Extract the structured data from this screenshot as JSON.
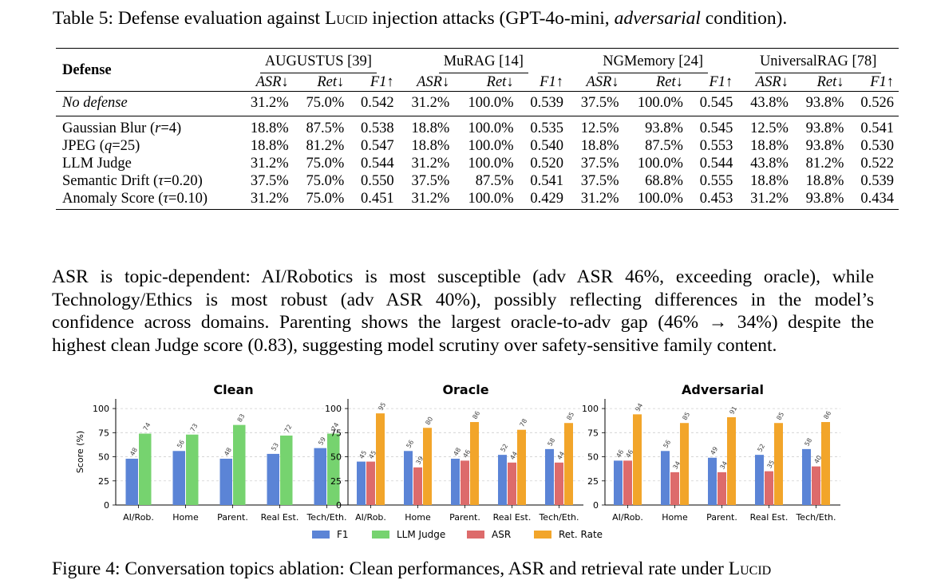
{
  "table_caption": {
    "prefix": "Table 5: Defense evaluation against ",
    "name": "Lucid",
    "middle": " injection attacks (GPT-4o-mini, ",
    "condition": "adversarial",
    "suffix": " condition)."
  },
  "table": {
    "defense_header": "Defense",
    "groups": [
      "AUGUSTUS [39]",
      "MuRAG [14]",
      "NGMemory [24]",
      "UniversalRAG [78]"
    ],
    "metrics": [
      "ASR↓",
      "Ret↓",
      "F1↑"
    ],
    "no_defense": {
      "label": "No defense",
      "cells": [
        {
          "v": "31.2%",
          "b": false
        },
        {
          "v": "75.0%",
          "b": false
        },
        {
          "v": "0.542",
          "b": false
        },
        {
          "v": "31.2%",
          "b": false
        },
        {
          "v": "100.0%",
          "b": false
        },
        {
          "v": "0.539",
          "b": false
        },
        {
          "v": "37.5%",
          "b": false
        },
        {
          "v": "100.0%",
          "b": false
        },
        {
          "v": "0.545",
          "b": false
        },
        {
          "v": "43.8%",
          "b": false
        },
        {
          "v": "93.8%",
          "b": false
        },
        {
          "v": "0.526",
          "b": false
        }
      ]
    },
    "rows": [
      {
        "label_parts": [
          {
            "t": "Gaussian Blur (",
            "i": false
          },
          {
            "t": "r",
            "i": true
          },
          {
            "t": "=4)",
            "i": false
          }
        ],
        "cells": [
          {
            "v": "18.8%",
            "b": true
          },
          {
            "v": "87.5%",
            "b": false
          },
          {
            "v": "0.538",
            "b": false
          },
          {
            "v": "18.8%",
            "b": true
          },
          {
            "v": "100.0%",
            "b": false
          },
          {
            "v": "0.535",
            "b": false
          },
          {
            "v": "12.5%",
            "b": true
          },
          {
            "v": "93.8%",
            "b": false
          },
          {
            "v": "0.545",
            "b": false
          },
          {
            "v": "12.5%",
            "b": true
          },
          {
            "v": "93.8%",
            "b": false
          },
          {
            "v": "0.541",
            "b": true
          }
        ]
      },
      {
        "label_parts": [
          {
            "t": "JPEG (",
            "i": false
          },
          {
            "t": "q",
            "i": true
          },
          {
            "t": "=25)",
            "i": false
          }
        ],
        "cells": [
          {
            "v": "18.8%",
            "b": true
          },
          {
            "v": "81.2%",
            "b": false
          },
          {
            "v": "0.547",
            "b": false
          },
          {
            "v": "18.8%",
            "b": true
          },
          {
            "v": "100.0%",
            "b": false
          },
          {
            "v": "0.540",
            "b": false
          },
          {
            "v": "18.8%",
            "b": false
          },
          {
            "v": "87.5%",
            "b": false
          },
          {
            "v": "0.553",
            "b": false
          },
          {
            "v": "18.8%",
            "b": false
          },
          {
            "v": "93.8%",
            "b": false
          },
          {
            "v": "0.530",
            "b": false
          }
        ]
      },
      {
        "label_parts": [
          {
            "t": "LLM Judge",
            "i": false
          }
        ],
        "cells": [
          {
            "v": "31.2%",
            "b": false
          },
          {
            "v": "75.0%",
            "b": true
          },
          {
            "v": "0.544",
            "b": false
          },
          {
            "v": "31.2%",
            "b": false
          },
          {
            "v": "100.0%",
            "b": false
          },
          {
            "v": "0.520",
            "b": false
          },
          {
            "v": "37.5%",
            "b": false
          },
          {
            "v": "100.0%",
            "b": false
          },
          {
            "v": "0.544",
            "b": false
          },
          {
            "v": "43.8%",
            "b": false
          },
          {
            "v": "81.2%",
            "b": false
          },
          {
            "v": "0.522",
            "b": false
          }
        ]
      },
      {
        "label_parts": [
          {
            "t": "Semantic Drift (",
            "i": false
          },
          {
            "t": "τ",
            "i": true
          },
          {
            "t": "=0.20)",
            "i": false
          }
        ],
        "cells": [
          {
            "v": "37.5%",
            "b": false
          },
          {
            "v": "75.0%",
            "b": true
          },
          {
            "v": "0.550",
            "b": true
          },
          {
            "v": "37.5%",
            "b": false
          },
          {
            "v": "87.5%",
            "b": true
          },
          {
            "v": "0.541",
            "b": true
          },
          {
            "v": "37.5%",
            "b": false
          },
          {
            "v": "68.8%",
            "b": true
          },
          {
            "v": "0.555",
            "b": true
          },
          {
            "v": "18.8%",
            "b": false
          },
          {
            "v": "18.8%",
            "b": true
          },
          {
            "v": "0.539",
            "b": false
          }
        ]
      },
      {
        "label_parts": [
          {
            "t": "Anomaly Score (",
            "i": false
          },
          {
            "t": "τ",
            "i": true
          },
          {
            "t": "=0.10)",
            "i": false
          }
        ],
        "cells": [
          {
            "v": "31.2%",
            "b": false
          },
          {
            "v": "75.0%",
            "b": true
          },
          {
            "v": "0.451",
            "b": false
          },
          {
            "v": "31.2%",
            "b": false
          },
          {
            "v": "100.0%",
            "b": false
          },
          {
            "v": "0.429",
            "b": false
          },
          {
            "v": "31.2%",
            "b": false
          },
          {
            "v": "100.0%",
            "b": false
          },
          {
            "v": "0.453",
            "b": false
          },
          {
            "v": "31.2%",
            "b": false
          },
          {
            "v": "93.8%",
            "b": false
          },
          {
            "v": "0.434",
            "b": false
          }
        ]
      }
    ]
  },
  "paragraph_lines": [
    "ASR is topic-dependent: AI/Robotics is most susceptible (adv ASR 46%, exceeding oracle), while",
    "Technology/Ethics is most robust (adv ASR 40%), possibly reflecting differences in the model’s",
    "confidence across domains. Parenting shows the largest oracle-to-adv gap (46% → 34%) despite the",
    "highest clean Judge score (0.83), suggesting model scrutiny over safety-sensitive family content."
  ],
  "figure_caption": {
    "text": "Figure 4: Conversation topics ablation: Clean performances, ASR and retrieval rate under ",
    "name": "Lucid"
  },
  "colors": {
    "F1": "#5b84d6",
    "LLM Judge": "#76d36f",
    "ASR": "#dd6b6b",
    "Ret. Rate": "#f2a52a"
  },
  "chart_data": [
    {
      "type": "bar",
      "title": "Clean",
      "categories": [
        "AI/Rob.",
        "Home",
        "Parent.",
        "Real Est.",
        "Tech/Eth."
      ],
      "ylabel": "Score (%)",
      "ylim": [
        0,
        110
      ],
      "yticks": [
        0,
        25,
        50,
        75,
        100
      ],
      "grid": true,
      "series": [
        {
          "name": "F1",
          "values": [
            48,
            56,
            48,
            53,
            59
          ]
        },
        {
          "name": "LLM Judge",
          "values": [
            74,
            73,
            83,
            72,
            74
          ]
        }
      ]
    },
    {
      "type": "bar",
      "title": "Oracle",
      "categories": [
        "AI/Rob.",
        "Home",
        "Parent.",
        "Real Est.",
        "Tech/Eth."
      ],
      "ylabel": "",
      "ylim": [
        0,
        110
      ],
      "yticks": [
        0,
        25,
        50,
        75,
        100
      ],
      "grid": true,
      "series": [
        {
          "name": "F1",
          "values": [
            45,
            56,
            48,
            52,
            58
          ]
        },
        {
          "name": "ASR",
          "values": [
            45,
            39,
            46,
            44,
            44
          ]
        },
        {
          "name": "Ret. Rate",
          "values": [
            95,
            80,
            86,
            78,
            85
          ]
        }
      ]
    },
    {
      "type": "bar",
      "title": "Adversarial",
      "categories": [
        "AI/Rob.",
        "Home",
        "Parent.",
        "Real Est.",
        "Tech/Eth."
      ],
      "ylabel": "",
      "ylim": [
        0,
        110
      ],
      "yticks": [
        0,
        25,
        50,
        75,
        100
      ],
      "grid": true,
      "series": [
        {
          "name": "F1",
          "values": [
            46,
            56,
            49,
            52,
            58
          ]
        },
        {
          "name": "ASR",
          "values": [
            46,
            34,
            34,
            35,
            40
          ]
        },
        {
          "name": "Ret. Rate",
          "values": [
            94,
            85,
            91,
            85,
            86
          ]
        }
      ]
    }
  ],
  "legend": [
    "F1",
    "LLM Judge",
    "ASR",
    "Ret. Rate"
  ]
}
